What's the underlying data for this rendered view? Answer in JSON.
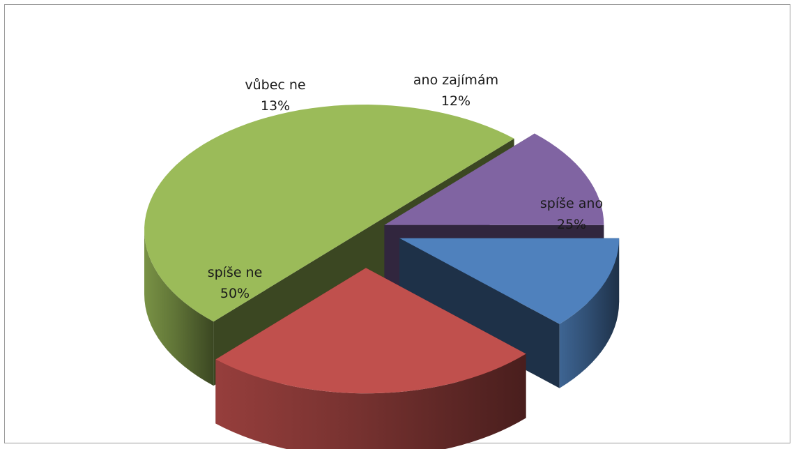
{
  "chart_data": {
    "type": "pie",
    "variant": "3d-exploded",
    "title": "",
    "legend": "none",
    "slices": [
      {
        "label": "ano zajímám",
        "value": 12,
        "value_label": "12%",
        "color": "#4F81BD"
      },
      {
        "label": "spíše ano",
        "value": 25,
        "value_label": "25%",
        "color": "#C0504D"
      },
      {
        "label": "spíše ne",
        "value": 50,
        "value_label": "50%",
        "color": "#9BBB59"
      },
      {
        "label": "vůbec ne",
        "value": 13,
        "value_label": "13%",
        "color": "#8064A2"
      }
    ]
  }
}
